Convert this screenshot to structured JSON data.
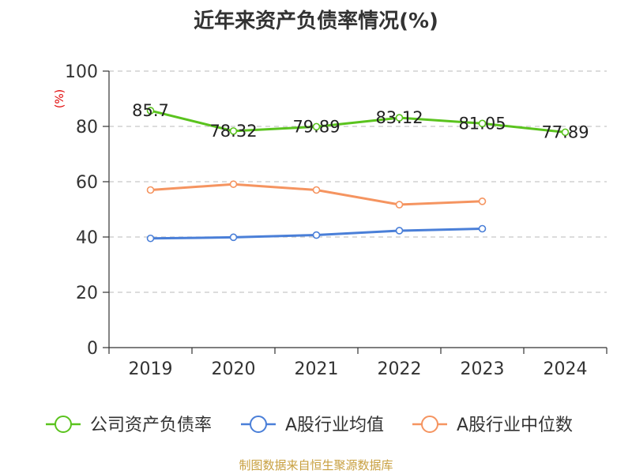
{
  "chart_data": {
    "type": "line",
    "title": "近年来资产负债率情况(%)",
    "ylabel": "(%)",
    "xlabel": "",
    "categories": [
      "2019",
      "2020",
      "2021",
      "2022",
      "2023",
      "2024"
    ],
    "y_ticks": [
      "0",
      "20",
      "40",
      "60",
      "80",
      "100"
    ],
    "ylim": [
      0,
      100
    ],
    "grid": true,
    "legend_position": "bottom",
    "series": [
      {
        "name": "公司资产负债率",
        "color": "#5ac31e",
        "values": [
          85.7,
          78.32,
          79.89,
          83.12,
          81.05,
          77.89
        ],
        "labels": [
          "85.7",
          "78.32",
          "79.89",
          "83.12",
          "81.05",
          "77.89"
        ]
      },
      {
        "name": "A股行业均值",
        "color": "#4a7fd8",
        "values": [
          39.5,
          39.9,
          40.7,
          42.3,
          43.0,
          null
        ]
      },
      {
        "name": "A股行业中位数",
        "color": "#f59460",
        "values": [
          57.0,
          59.1,
          57.0,
          51.7,
          52.9,
          null
        ]
      }
    ]
  },
  "source": "制图数据来自恒生聚源数据库"
}
